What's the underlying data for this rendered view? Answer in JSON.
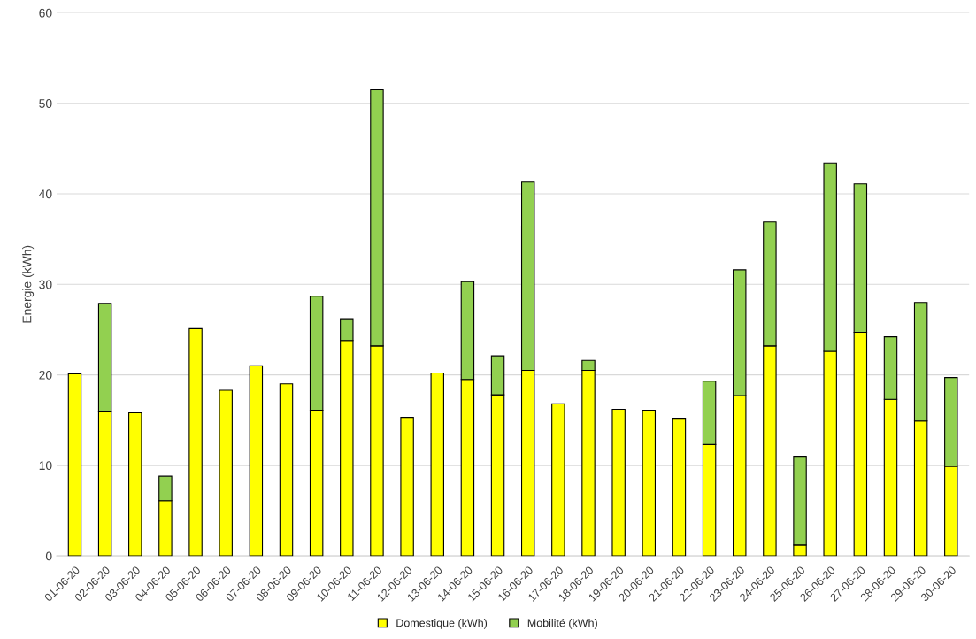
{
  "chart_data": {
    "type": "bar",
    "stacked": true,
    "ylabel": "Energie (kWh)",
    "categories": [
      "01-06-20",
      "02-06-20",
      "03-06-20",
      "04-06-20",
      "05-06-20",
      "06-06-20",
      "07-06-20",
      "08-06-20",
      "09-06-20",
      "10-06-20",
      "11-06-20",
      "12-06-20",
      "13-06-20",
      "14-06-20",
      "15-06-20",
      "16-06-20",
      "17-06-20",
      "18-06-20",
      "19-06-20",
      "20-06-20",
      "21-06-20",
      "22-06-20",
      "23-06-20",
      "24-06-20",
      "25-06-20",
      "26-06-20",
      "27-06-20",
      "28-06-20",
      "29-06-20",
      "30-06-20"
    ],
    "series": [
      {
        "name": "Domestique (kWh)",
        "color": "#ffff00",
        "values": [
          20.1,
          16.0,
          15.8,
          6.1,
          25.1,
          18.3,
          21.0,
          19.0,
          16.1,
          23.8,
          23.2,
          15.3,
          20.2,
          19.5,
          17.8,
          20.5,
          16.8,
          20.5,
          16.2,
          16.1,
          15.2,
          12.3,
          17.7,
          23.2,
          1.2,
          22.6,
          24.7,
          17.3,
          14.9,
          9.9
        ]
      },
      {
        "name": "Mobilité (kWh)",
        "color": "#92d050",
        "values": [
          null,
          11.9,
          null,
          2.7,
          null,
          null,
          null,
          null,
          12.6,
          2.4,
          28.3,
          null,
          null,
          10.8,
          4.3,
          20.8,
          null,
          1.1,
          null,
          null,
          null,
          7.0,
          13.9,
          13.7,
          9.8,
          20.8,
          16.4,
          6.9,
          13.1,
          9.8
        ]
      }
    ],
    "ylim": [
      0,
      60
    ],
    "yticks": [
      0,
      10,
      20,
      30,
      40,
      50,
      60
    ],
    "grid": "y",
    "legend": "bottom"
  }
}
